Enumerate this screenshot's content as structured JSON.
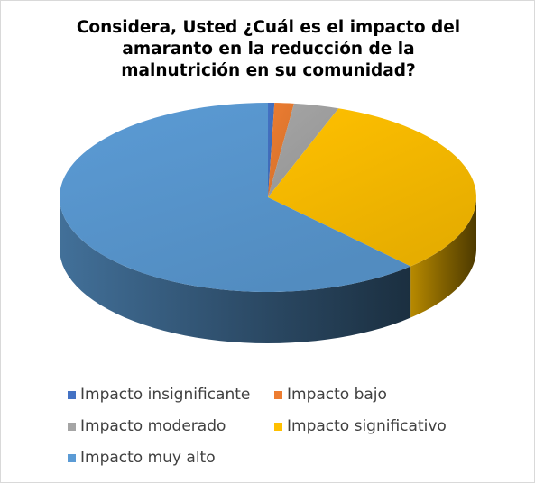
{
  "chart_data": {
    "type": "pie",
    "title_lines": [
      "Considera, Usted ¿Cuál es el impacto del",
      "amaranto en la reducción de la",
      "malnutrición en su comunidad?"
    ],
    "categories": [
      "Impacto insignificante",
      "Impacto bajo",
      "Impacto moderado",
      "Impacto significativo",
      "Impacto muy alto"
    ],
    "values": [
      0.5,
      1.5,
      3.5,
      32.5,
      62
    ],
    "colors": [
      "#4472c4",
      "#ed7d31",
      "#a5a5a5",
      "#ffc000",
      "#5b9bd5"
    ],
    "style": "3d-pie",
    "legend_position": "bottom"
  }
}
